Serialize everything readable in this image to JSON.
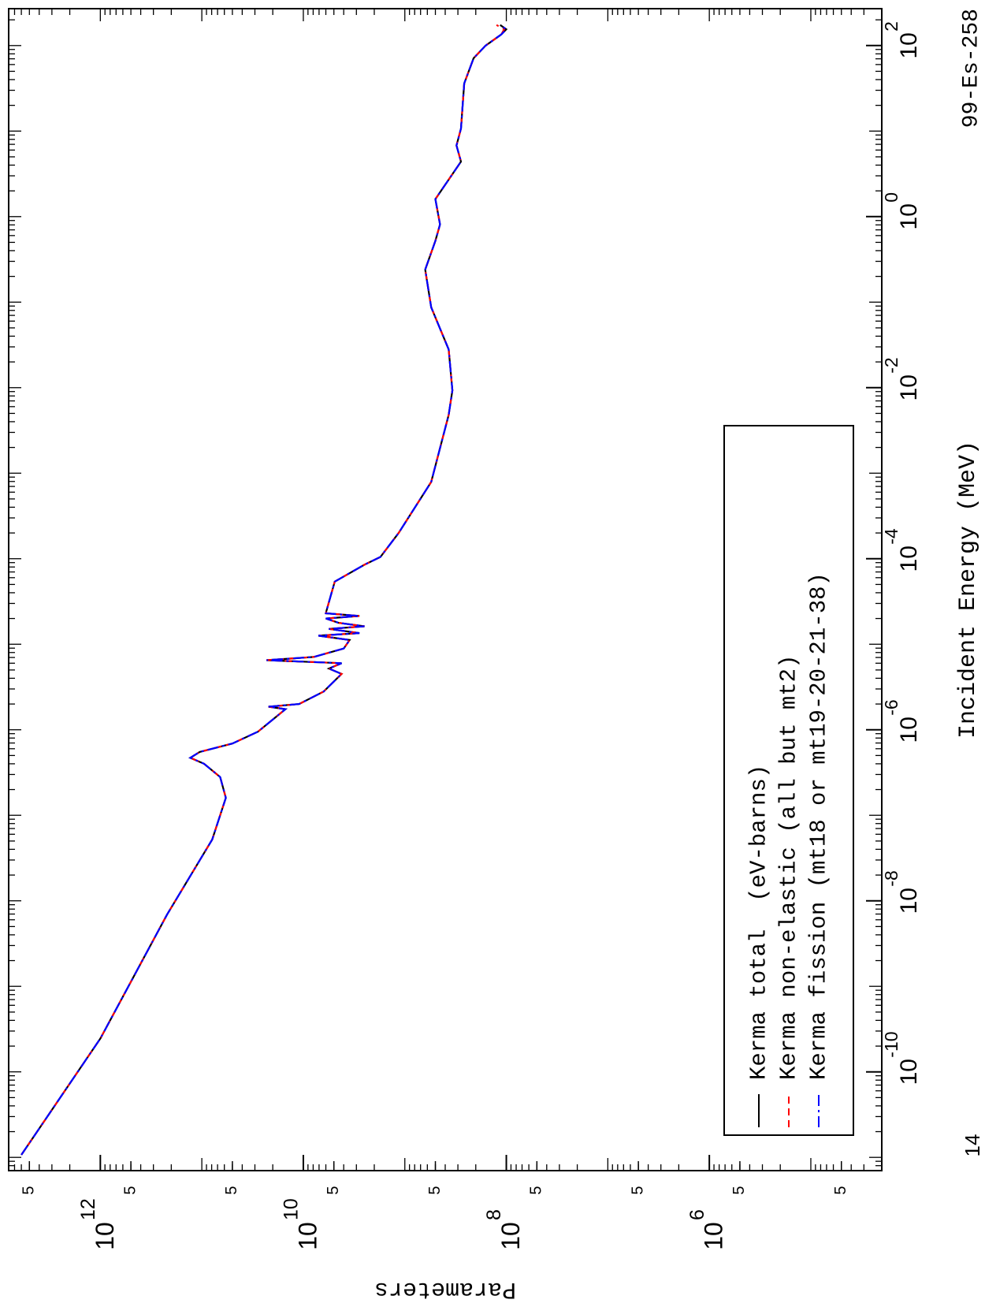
{
  "chart_data": {
    "type": "line",
    "x_label": "Incident Energy (MeV)",
    "y_label": "Parameters",
    "corner_label": "99-Es-258",
    "annotation": "14",
    "xlog": true,
    "ylog": true,
    "xlim": [
      7e-12,
      270
    ],
    "ylim": [
      20000,
      8000000000000.0
    ],
    "xticks": [
      {
        "value": 1e-10,
        "label": "10",
        "sup": "-10"
      },
      {
        "value": 1e-08,
        "label": "10",
        "sup": "-8"
      },
      {
        "value": 1e-06,
        "label": "10",
        "sup": "-6"
      },
      {
        "value": 0.0001,
        "label": "10",
        "sup": "-4"
      },
      {
        "value": 0.01,
        "label": "10",
        "sup": "-2"
      },
      {
        "value": 1,
        "label": "10",
        "sup": "0"
      },
      {
        "value": 100,
        "label": "10",
        "sup": "2"
      }
    ],
    "yticks": [
      {
        "value": 5000000000000.0,
        "label": "5"
      },
      {
        "value": 1000000000000.0,
        "label": "10",
        "sup": "12"
      },
      {
        "value": 500000000000.0,
        "label": "5"
      },
      {
        "value": 50000000000.0,
        "label": "5"
      },
      {
        "value": 10000000000.0,
        "label": "10",
        "sup": "10"
      },
      {
        "value": 5000000000.0,
        "label": "5"
      },
      {
        "value": 500000000.0,
        "label": "5"
      },
      {
        "value": 100000000.0,
        "label": "10",
        "sup": "8"
      },
      {
        "value": 50000000.0,
        "label": "5"
      },
      {
        "value": 5000000.0,
        "label": "5"
      },
      {
        "value": 1000000.0,
        "label": "10",
        "sup": "6"
      },
      {
        "value": 500000.0,
        "label": "5"
      },
      {
        "value": 50000.0,
        "label": "5"
      }
    ],
    "legend": "lower left",
    "x": [
      1.07e-11,
      2.45e-10,
      6.9e-09,
      5.2e-08,
      1.6e-07,
      2.8e-07,
      4e-07,
      4.7e-07,
      5.5e-07,
      6.9e-07,
      9.5e-07,
      1.35e-06,
      1.74e-06,
      1.86e-06,
      2e-06,
      2.8e-06,
      4.5e-06,
      5.2e-06,
      6e-06,
      6.5e-06,
      7.1e-06,
      8.9e-06,
      1.12e-05,
      1.26e-05,
      1.35e-05,
      1.51e-05,
      1.62e-05,
      1.78e-05,
      2e-05,
      2.14e-05,
      2.3e-05,
      2.5e-05,
      5.4e-05,
      8.5e-05,
      0.000105,
      0.0002,
      0.00079,
      0.0048,
      0.0093,
      0.028,
      0.087,
      0.24,
      0.52,
      0.81,
      1.6,
      4.4,
      6.8,
      10.7,
      36,
      71,
      100,
      135,
      155,
      174
    ],
    "series": [
      {
        "name": "Kerma total  (eV-barns)",
        "color": "#000000",
        "dash": "solid",
        "values": [
          6000000000000.0,
          1000000000000.0,
          220000000000.0,
          79000000000.0,
          58000000000.0,
          66000000000.0,
          95000000000.0,
          130000000000.0,
          105000000000.0,
          50000000000.0,
          28000000000.0,
          19500000000.0,
          15000000000.0,
          22000000000.0,
          11000000000.0,
          6300000000.0,
          4200000000.0,
          5600000000.0,
          4200000000.0,
          23000000000.0,
          7900000000.0,
          4000000000.0,
          3500000000.0,
          7100000000.0,
          2800000000.0,
          5600000000.0,
          2500000000.0,
          4500000000.0,
          6000000000.0,
          2800000000.0,
          6000000000.0,
          5900000000.0,
          4900000000.0,
          2500000000.0,
          1740000000.0,
          1150000000.0,
          550000000.0,
          370000000.0,
          340000000.0,
          370000000.0,
          550000000.0,
          630000000.0,
          500000000.0,
          450000000.0,
          500000000.0,
          280000000.0,
          310000000.0,
          280000000.0,
          260000000.0,
          210000000.0,
          160000000.0,
          112000000.0,
          100000000.0,
          115000000.0
        ]
      },
      {
        "name": "Kerma non-elastic (all but mt2)",
        "color": "#ff0000",
        "dash": "dashed",
        "values": [
          6000000000000.0,
          1000000000000.0,
          220000000000.0,
          79000000000.0,
          58000000000.0,
          66000000000.0,
          95000000000.0,
          130000000000.0,
          105000000000.0,
          50000000000.0,
          28000000000.0,
          19500000000.0,
          15000000000.0,
          22000000000.0,
          11000000000.0,
          6300000000.0,
          4200000000.0,
          5600000000.0,
          4200000000.0,
          23000000000.0,
          7900000000.0,
          4000000000.0,
          3500000000.0,
          7100000000.0,
          2800000000.0,
          5600000000.0,
          2500000000.0,
          4500000000.0,
          6000000000.0,
          2800000000.0,
          6000000000.0,
          5900000000.0,
          4900000000.0,
          2500000000.0,
          1740000000.0,
          1150000000.0,
          550000000.0,
          370000000.0,
          340000000.0,
          370000000.0,
          550000000.0,
          630000000.0,
          500000000.0,
          450000000.0,
          500000000.0,
          280000000.0,
          310000000.0,
          280000000.0,
          260000000.0,
          210000000.0,
          160000000.0,
          112000000.0,
          105000000.0,
          125000000.0
        ]
      },
      {
        "name": "Kerma fission (mt18 or mt19-20-21-38)",
        "color": "#0000ff",
        "dash": "dashdot",
        "values": [
          6000000000000.0,
          1000000000000.0,
          220000000000.0,
          79000000000.0,
          58000000000.0,
          66000000000.0,
          95000000000.0,
          130000000000.0,
          105000000000.0,
          50000000000.0,
          28000000000.0,
          19500000000.0,
          15000000000.0,
          22000000000.0,
          11000000000.0,
          6300000000.0,
          4200000000.0,
          5600000000.0,
          4200000000.0,
          23000000000.0,
          7900000000.0,
          4000000000.0,
          3500000000.0,
          7100000000.0,
          2800000000.0,
          5600000000.0,
          2500000000.0,
          4500000000.0,
          6000000000.0,
          2800000000.0,
          6000000000.0,
          5900000000.0,
          4900000000.0,
          2500000000.0,
          1740000000.0,
          1150000000.0,
          550000000.0,
          370000000.0,
          340000000.0,
          370000000.0,
          550000000.0,
          630000000.0,
          500000000.0,
          450000000.0,
          500000000.0,
          280000000.0,
          310000000.0,
          280000000.0,
          260000000.0,
          210000000.0,
          160000000.0,
          112000000.0,
          100000000.0,
          115000000.0
        ]
      }
    ]
  }
}
